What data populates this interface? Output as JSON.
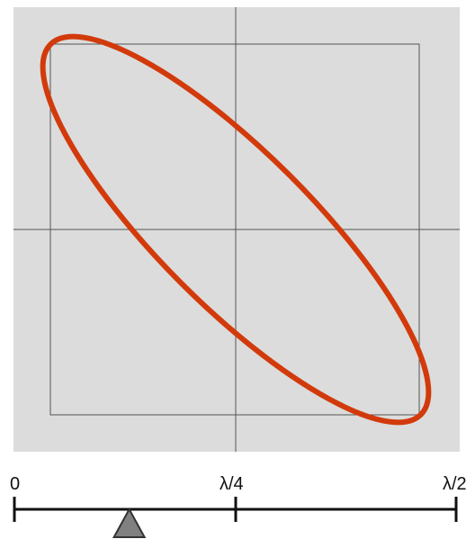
{
  "diagram": {
    "colors": {
      "panel_background": "#dcdcdc",
      "axis_line": "#555555",
      "ellipse": "#d23a0b",
      "scale_line": "#111111",
      "pointer": "#808080",
      "pointer_stroke": "#333333"
    },
    "scale": {
      "tick_labels": [
        "0",
        "λ/4",
        "λ/2"
      ],
      "pointer_value_fraction_of_half_wave": 0.26
    }
  }
}
